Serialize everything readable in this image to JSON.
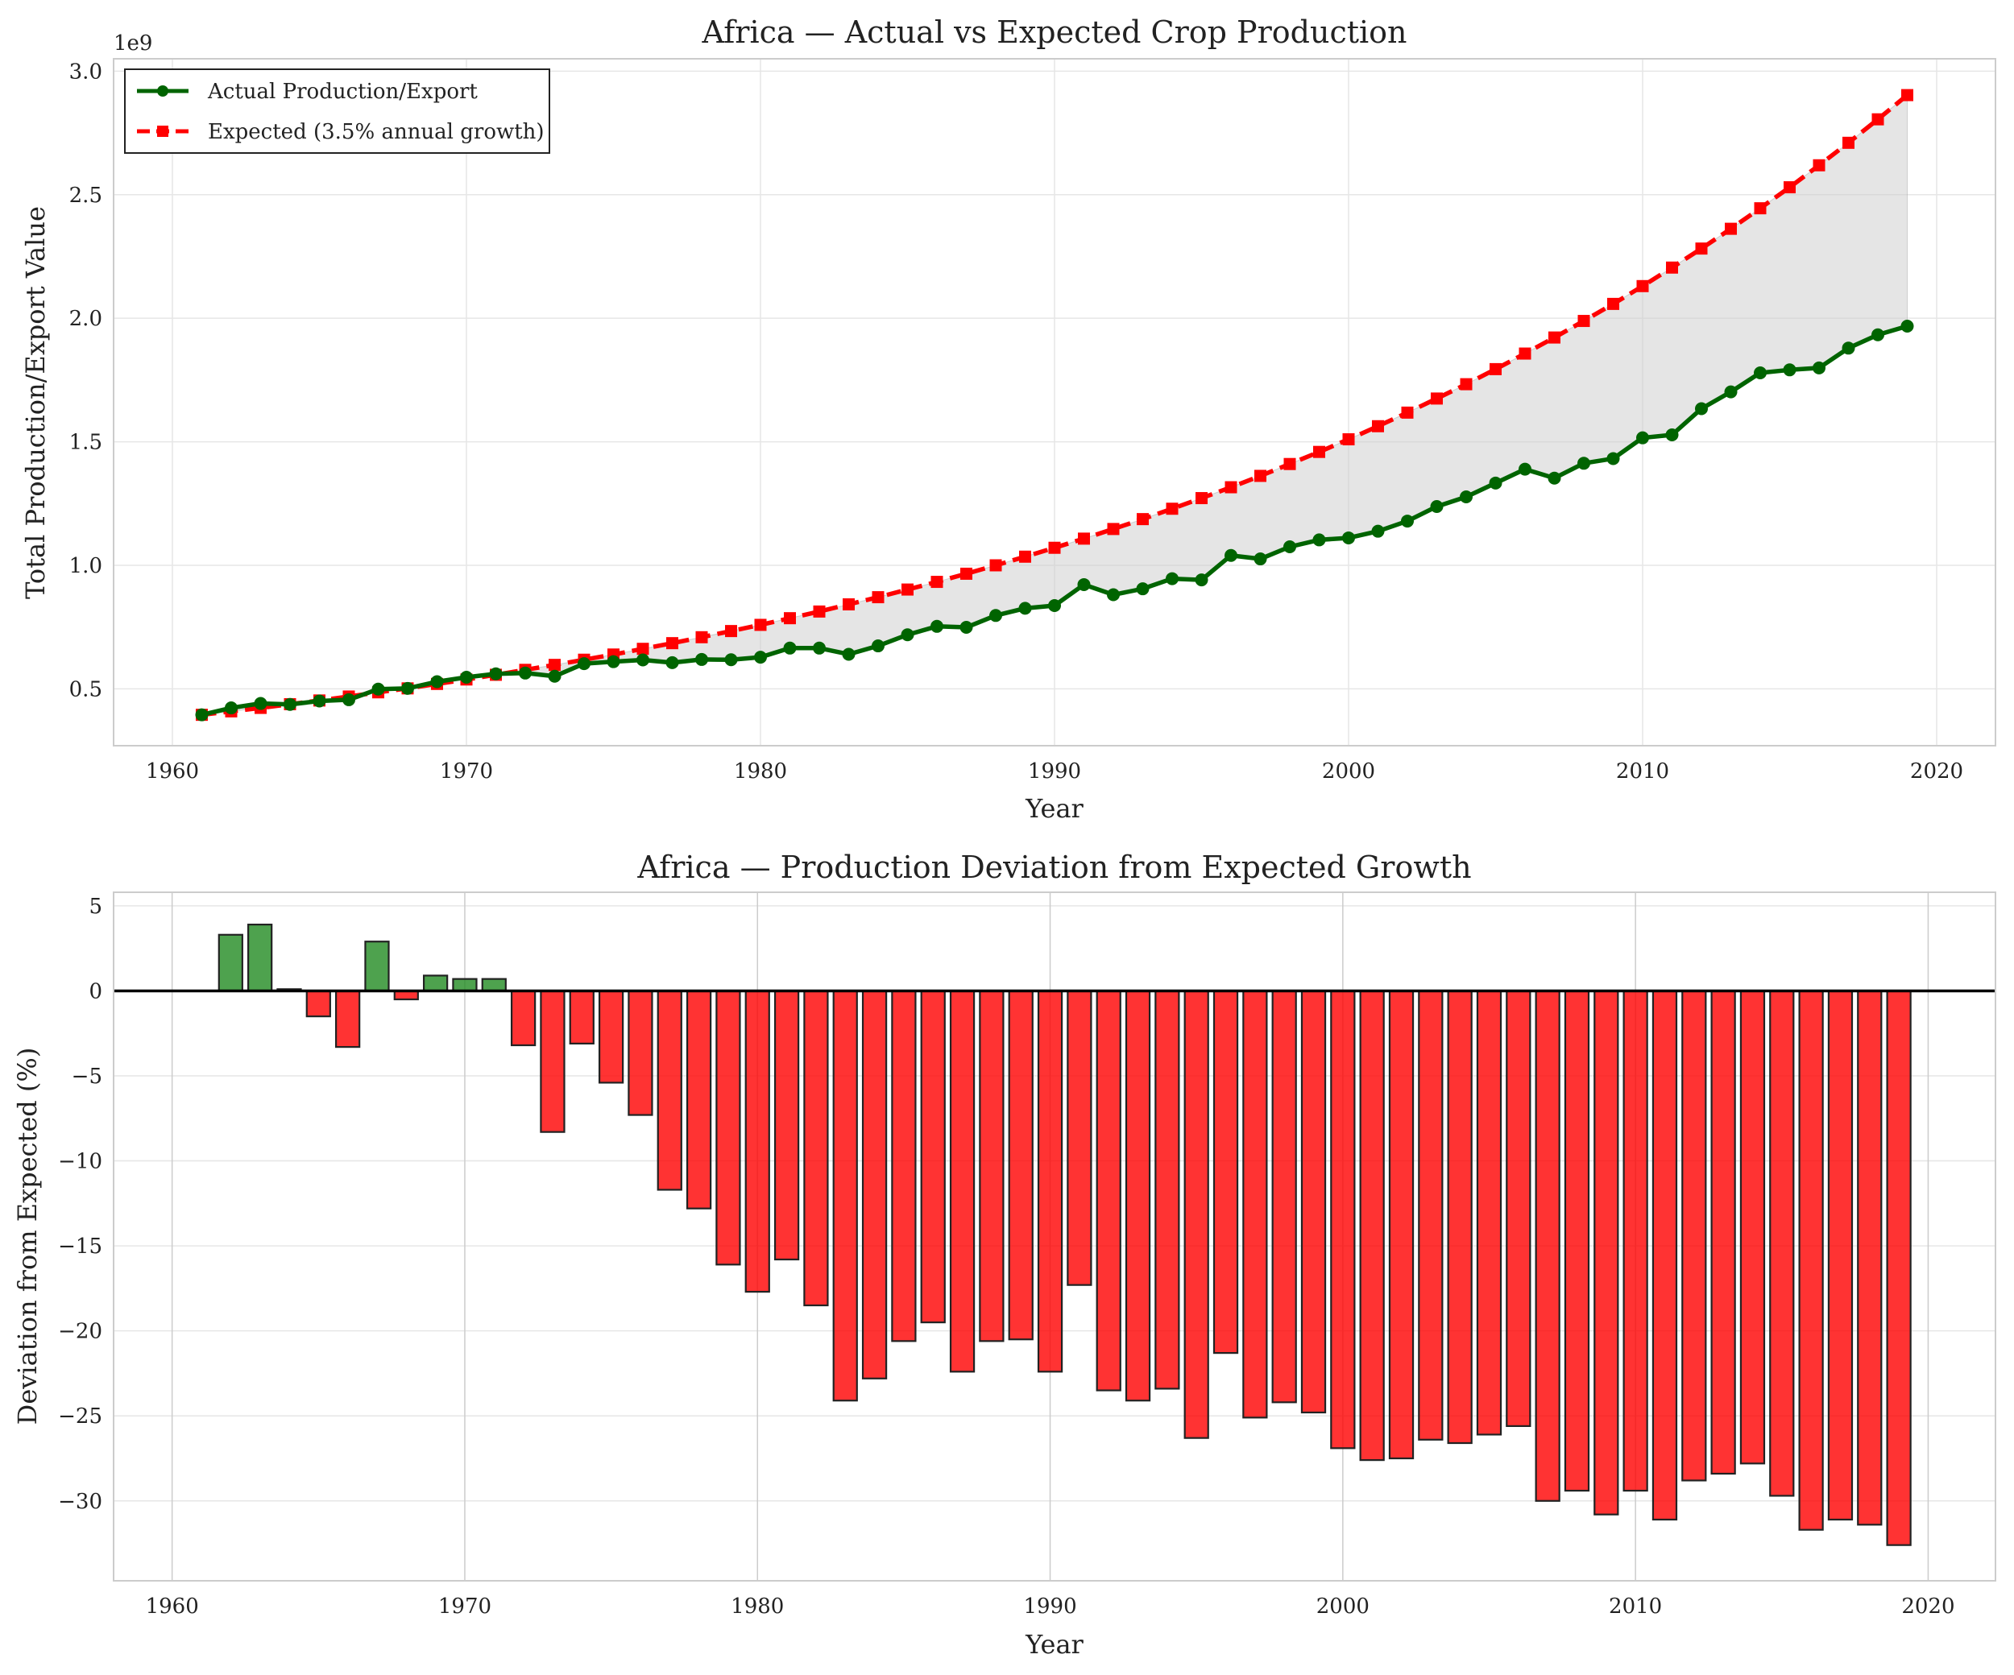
{
  "chart_data": [
    {
      "type": "line",
      "title": "Africa — Actual vs Expected Crop Production",
      "xlabel": "Year",
      "ylabel": "Total Production/Export Value",
      "y_offset_label": "1e9",
      "xlim": [
        1958,
        2022
      ],
      "ylim": [
        0.27,
        3.05
      ],
      "x_ticks": [
        1960,
        1970,
        1980,
        1990,
        2000,
        2010,
        2020
      ],
      "y_ticks": [
        0.5,
        1.0,
        1.5,
        2.0,
        2.5,
        3.0
      ],
      "y_tick_labels": [
        "0.5",
        "1.0",
        "1.5",
        "2.0",
        "2.5",
        "3.0"
      ],
      "grid": true,
      "legend_position": "top-left",
      "years": [
        1961,
        1962,
        1963,
        1964,
        1965,
        1966,
        1967,
        1968,
        1969,
        1970,
        1971,
        1972,
        1973,
        1974,
        1975,
        1976,
        1977,
        1978,
        1979,
        1980,
        1981,
        1982,
        1983,
        1984,
        1985,
        1986,
        1987,
        1988,
        1989,
        1990,
        1991,
        1992,
        1993,
        1994,
        1995,
        1996,
        1997,
        1998,
        1999,
        2000,
        2001,
        2002,
        2003,
        2004,
        2005,
        2006,
        2007,
        2008,
        2009,
        2010,
        2011,
        2012,
        2013,
        2014,
        2015,
        2016,
        2017,
        2018,
        2019
      ],
      "series": [
        {
          "name": "Actual Production/Export",
          "color": "#006400",
          "marker": "circle",
          "values": [
            0.395,
            0.423,
            0.441,
            0.437,
            0.451,
            0.456,
            0.499,
            0.502,
            0.529,
            0.547,
            0.561,
            0.564,
            0.551,
            0.602,
            0.61,
            0.617,
            0.606,
            0.619,
            0.618,
            0.628,
            0.665,
            0.665,
            0.64,
            0.674,
            0.719,
            0.753,
            0.749,
            0.797,
            0.826,
            0.837,
            0.922,
            0.881,
            0.905,
            0.946,
            0.941,
            1.04,
            1.026,
            1.075,
            1.103,
            1.111,
            1.138,
            1.179,
            1.238,
            1.277,
            1.333,
            1.389,
            1.353,
            1.413,
            1.432,
            1.516,
            1.528,
            1.634,
            1.702,
            1.779,
            1.791,
            1.799,
            1.879,
            1.933,
            1.968
          ]
        },
        {
          "name": "Expected (3.5% annual growth)",
          "color": "#ff0000",
          "marker": "square",
          "values": [
            0.395,
            0.409,
            0.423,
            0.438,
            0.453,
            0.469,
            0.486,
            0.502,
            0.52,
            0.538,
            0.557,
            0.577,
            0.597,
            0.618,
            0.639,
            0.662,
            0.685,
            0.709,
            0.734,
            0.759,
            0.786,
            0.813,
            0.842,
            0.871,
            0.902,
            0.933,
            0.966,
            1.0,
            1.035,
            1.071,
            1.108,
            1.147,
            1.187,
            1.229,
            1.272,
            1.316,
            1.362,
            1.41,
            1.459,
            1.51,
            1.563,
            1.618,
            1.675,
            1.733,
            1.794,
            1.857,
            1.922,
            1.989,
            2.058,
            2.13,
            2.205,
            2.282,
            2.362,
            2.445,
            2.53,
            2.619,
            2.71,
            2.805,
            2.903
          ]
        }
      ]
    },
    {
      "type": "bar",
      "title": "Africa — Production Deviation from Expected Growth",
      "xlabel": "Year",
      "ylabel": "Deviation from Expected (%)",
      "xlim": [
        1958,
        2022.3
      ],
      "ylim": [
        -34.7,
        5.8
      ],
      "x_ticks": [
        1960,
        1970,
        1980,
        1990,
        2000,
        2010,
        2020
      ],
      "y_ticks": [
        5,
        0,
        -5,
        -10,
        -15,
        -20,
        -25,
        -30
      ],
      "y_tick_labels": [
        "5",
        "0",
        "−5",
        "−10",
        "−15",
        "−20",
        "−25",
        "−30"
      ],
      "grid": true,
      "positive_color": "#228b22",
      "negative_color": "#ff0000",
      "years": [
        1961,
        1962,
        1963,
        1964,
        1965,
        1966,
        1967,
        1968,
        1969,
        1970,
        1971,
        1972,
        1973,
        1974,
        1975,
        1976,
        1977,
        1978,
        1979,
        1980,
        1981,
        1982,
        1983,
        1984,
        1985,
        1986,
        1987,
        1988,
        1989,
        1990,
        1991,
        1992,
        1993,
        1994,
        1995,
        1996,
        1997,
        1998,
        1999,
        2000,
        2001,
        2002,
        2003,
        2004,
        2005,
        2006,
        2007,
        2008,
        2009,
        2010,
        2011,
        2012,
        2013,
        2014,
        2015,
        2016,
        2017,
        2018,
        2019
      ],
      "values": [
        0,
        3.3,
        3.9,
        0.1,
        -1.5,
        -3.3,
        2.9,
        -0.5,
        0.9,
        0.7,
        0.7,
        -3.2,
        -8.3,
        -3.1,
        -5.4,
        -7.3,
        -11.7,
        -12.8,
        -16.1,
        -17.7,
        -15.8,
        -18.5,
        -24.1,
        -22.8,
        -20.6,
        -19.5,
        -22.4,
        -20.6,
        -20.5,
        -22.4,
        -17.3,
        -23.5,
        -24.1,
        -23.4,
        -26.3,
        -21.3,
        -25.1,
        -24.2,
        -24.8,
        -26.9,
        -27.6,
        -27.5,
        -26.4,
        -26.6,
        -26.1,
        -25.6,
        -30.0,
        -29.4,
        -30.8,
        -29.4,
        -31.1,
        -28.8,
        -28.4,
        -27.8,
        -29.7,
        -31.7,
        -31.1,
        -31.4,
        -32.6
      ]
    }
  ]
}
